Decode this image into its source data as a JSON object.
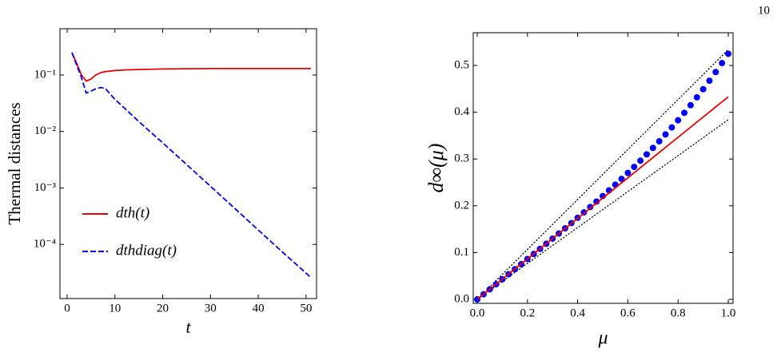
{
  "page_number": "10",
  "chart_data": [
    {
      "type": "line",
      "xlabel": "t",
      "ylabel": "Thermal distances",
      "log_y": true,
      "legend": "lower left",
      "xlim": [
        -1.5,
        52.2
      ],
      "xticks": [
        0,
        10,
        20,
        30,
        40,
        50
      ],
      "ylim": [
        1.1e-05,
        0.66
      ],
      "yticks": [
        {
          "value": 0.0001,
          "label": "10⁻⁴"
        },
        {
          "value": 0.001,
          "label": "10⁻³"
        },
        {
          "value": 0.01,
          "label": "10⁻²"
        },
        {
          "value": 0.1,
          "label": "10⁻¹"
        }
      ],
      "x": [
        1,
        2,
        3,
        4,
        5,
        6,
        7,
        8,
        10,
        12,
        15,
        20,
        25,
        30,
        35,
        40,
        45,
        50,
        51
      ],
      "series": [
        {
          "name": "dth(t)",
          "color": "#ee0000",
          "style": "solid",
          "values": [
            0.25,
            0.16,
            0.1,
            0.078,
            0.085,
            0.1,
            0.11,
            0.115,
            0.12,
            0.123,
            0.125,
            0.128,
            0.129,
            0.13,
            0.13,
            0.13,
            0.13,
            0.13,
            0.13
          ]
        },
        {
          "name": "dthdiag(t)",
          "color": "#0000ee",
          "style": "dashed",
          "values": [
            0.25,
            0.15,
            0.09,
            0.048,
            0.052,
            0.057,
            0.06,
            0.058,
            0.037,
            0.026,
            0.015,
            0.0063,
            0.0026,
            0.00107,
            0.00044,
            0.00018,
            7.4e-05,
            3.1e-05,
            2.6e-05
          ]
        }
      ]
    },
    {
      "type": "line",
      "xlabel": "μ",
      "ylabel": "d∞(μ)",
      "log_y": false,
      "xlim": [
        -0.016,
        1.019
      ],
      "xticks": [
        {
          "value": 0,
          "label": "0.0"
        },
        {
          "value": 0.2,
          "label": "0.2"
        },
        {
          "value": 0.4,
          "label": "0.4"
        },
        {
          "value": 0.6,
          "label": "0.6"
        },
        {
          "value": 0.8,
          "label": "0.8"
        },
        {
          "value": 1,
          "label": "1.0"
        }
      ],
      "ylim": [
        -0.0085,
        0.57
      ],
      "yticks": [
        {
          "value": 0,
          "label": "0.0"
        },
        {
          "value": 0.1,
          "label": "0.1"
        },
        {
          "value": 0.2,
          "label": "0.2"
        },
        {
          "value": 0.3,
          "label": "0.3"
        },
        {
          "value": 0.4,
          "label": "0.4"
        },
        {
          "value": 0.5,
          "label": "0.5"
        }
      ],
      "series": [
        {
          "color": "#000000",
          "style": "dotted",
          "x": [
            0,
            1
          ],
          "values": [
            0,
            0.534
          ]
        },
        {
          "color": "#000000",
          "style": "dotted",
          "x": [
            0,
            1
          ],
          "values": [
            0,
            0.384
          ]
        },
        {
          "color": "#0000ff",
          "style": "markers",
          "x": [
            0,
            0.025,
            0.05,
            0.075,
            0.1,
            0.125,
            0.15,
            0.175,
            0.2,
            0.225,
            0.25,
            0.275,
            0.3,
            0.325,
            0.35,
            0.375,
            0.4,
            0.425,
            0.45,
            0.475,
            0.5,
            0.525,
            0.55,
            0.575,
            0.6,
            0.625,
            0.65,
            0.675,
            0.7,
            0.725,
            0.75,
            0.775,
            0.8,
            0.825,
            0.85,
            0.875,
            0.9,
            0.925,
            0.95,
            0.975,
            1
          ],
          "values": [
            0,
            0.0108,
            0.0215,
            0.0323,
            0.043,
            0.0538,
            0.0645,
            0.0753,
            0.0862,
            0.097,
            0.1079,
            0.1188,
            0.1298,
            0.1408,
            0.1519,
            0.1631,
            0.1744,
            0.1859,
            0.1974,
            0.2091,
            0.2209,
            0.233,
            0.2452,
            0.2576,
            0.2703,
            0.2832,
            0.2965,
            0.31,
            0.3238,
            0.338,
            0.3526,
            0.3675,
            0.3829,
            0.3988,
            0.4151,
            0.4319,
            0.4493,
            0.4673,
            0.4859,
            0.5051,
            0.525
          ]
        },
        {
          "color": "#ee0000",
          "style": "solid",
          "x": [
            0,
            1
          ],
          "values": [
            0,
            0.433
          ]
        }
      ]
    }
  ]
}
